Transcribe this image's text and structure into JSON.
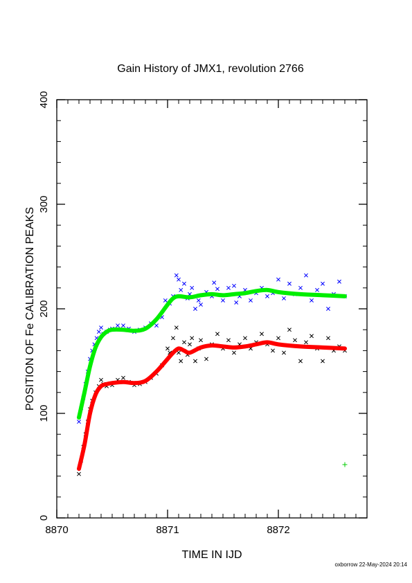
{
  "chart_data": {
    "type": "scatter",
    "title": "Gain History of JMX1, revolution 2766",
    "xlabel": "TIME IN IJD",
    "ylabel": "POSITION OF Fe CALIBRATION PEAKS",
    "xlim": [
      8870,
      8872.8
    ],
    "ylim": [
      0,
      400
    ],
    "x_ticks": [
      8870,
      8871,
      8872
    ],
    "x_tick_labels": [
      "8870",
      "8871",
      "8872"
    ],
    "y_ticks": [
      0,
      100,
      200,
      300,
      400
    ],
    "y_tick_labels": [
      "0",
      "100",
      "200",
      "300",
      "400"
    ],
    "grid": false,
    "legend": "none",
    "colors": {
      "upper_points": "#0000ff",
      "upper_fit": "#00ee00",
      "lower_points": "#000000",
      "lower_fit": "#ff0000",
      "outlier": "#00cc00"
    },
    "series": [
      {
        "role": "upper-fit",
        "x": [
          8870.2,
          8870.25,
          8870.3,
          8870.35,
          8870.4,
          8870.45,
          8870.5,
          8870.6,
          8870.7,
          8870.8,
          8870.9,
          8871.0,
          8871.05,
          8871.1,
          8871.2,
          8871.3,
          8871.4,
          8871.5,
          8871.6,
          8871.7,
          8871.8,
          8871.9,
          8872.0,
          8872.2,
          8872.4,
          8872.6
        ],
        "y": [
          96,
          120,
          145,
          163,
          173,
          178,
          180,
          180,
          179,
          181,
          190,
          204,
          210,
          212,
          211,
          213,
          214,
          213,
          214,
          215,
          217,
          218,
          216,
          214,
          213,
          212
        ]
      },
      {
        "role": "lower-fit",
        "x": [
          8870.2,
          8870.25,
          8870.3,
          8870.35,
          8870.4,
          8870.45,
          8870.5,
          8870.6,
          8870.7,
          8870.8,
          8870.9,
          8871.0,
          8871.05,
          8871.1,
          8871.15,
          8871.2,
          8871.3,
          8871.4,
          8871.5,
          8871.6,
          8871.7,
          8871.8,
          8871.9,
          8872.0,
          8872.2,
          8872.4,
          8872.6
        ],
        "y": [
          47,
          70,
          100,
          118,
          126,
          128,
          129,
          130,
          129,
          131,
          140,
          152,
          158,
          162,
          160,
          158,
          163,
          165,
          164,
          163,
          164,
          166,
          168,
          166,
          164,
          163,
          162
        ]
      },
      {
        "role": "upper-points",
        "x": [
          8870.2,
          8870.22,
          8870.24,
          8870.26,
          8870.28,
          8870.3,
          8870.32,
          8870.34,
          8870.36,
          8870.38,
          8870.4,
          8870.42,
          8870.45,
          8870.48,
          8870.5,
          8870.55,
          8870.6,
          8870.65,
          8870.7,
          8870.75,
          8870.8,
          8870.85,
          8870.9,
          8870.95,
          8870.98,
          8871.0,
          8871.02,
          8871.05,
          8871.08,
          8871.1,
          8871.12,
          8871.15,
          8871.18,
          8871.2,
          8871.22,
          8871.25,
          8871.28,
          8871.3,
          8871.35,
          8871.4,
          8871.42,
          8871.45,
          8871.5,
          8871.55,
          8871.6,
          8871.62,
          8871.65,
          8871.7,
          8871.75,
          8871.8,
          8871.85,
          8871.9,
          8871.95,
          8872.0,
          8872.05,
          8872.1,
          8872.15,
          8872.2,
          8872.25,
          8872.3,
          8872.35,
          8872.4,
          8872.45,
          8872.5,
          8872.55,
          8872.6
        ],
        "y": [
          92,
          105,
          115,
          128,
          140,
          152,
          160,
          166,
          172,
          178,
          182,
          176,
          178,
          180,
          181,
          184,
          184,
          181,
          178,
          180,
          182,
          186,
          184,
          192,
          208,
          206,
          205,
          212,
          232,
          228,
          218,
          224,
          210,
          214,
          220,
          200,
          208,
          204,
          216,
          212,
          225,
          219,
          208,
          220,
          222,
          206,
          212,
          218,
          208,
          215,
          220,
          212,
          215,
          228,
          210,
          224,
          214,
          220,
          232,
          208,
          218,
          224,
          200,
          214,
          226,
          212
        ]
      },
      {
        "role": "lower-points",
        "x": [
          8870.2,
          8870.22,
          8870.24,
          8870.26,
          8870.28,
          8870.3,
          8870.32,
          8870.35,
          8870.38,
          8870.4,
          8870.42,
          8870.45,
          8870.5,
          8870.55,
          8870.6,
          8870.65,
          8870.7,
          8870.75,
          8870.8,
          8870.85,
          8870.9,
          8870.95,
          8871.0,
          8871.02,
          8871.05,
          8871.08,
          8871.1,
          8871.12,
          8871.15,
          8871.18,
          8871.2,
          8871.22,
          8871.25,
          8871.28,
          8871.3,
          8871.35,
          8871.4,
          8871.45,
          8871.5,
          8871.55,
          8871.6,
          8871.65,
          8871.7,
          8871.75,
          8871.8,
          8871.85,
          8871.9,
          8871.95,
          8872.0,
          8872.05,
          8872.1,
          8872.15,
          8872.2,
          8872.25,
          8872.3,
          8872.35,
          8872.4,
          8872.45,
          8872.5,
          8872.55,
          8872.6
        ],
        "y": [
          42,
          55,
          68,
          80,
          92,
          104,
          112,
          120,
          126,
          132,
          128,
          126,
          127,
          132,
          134,
          130,
          127,
          128,
          130,
          134,
          138,
          146,
          162,
          158,
          172,
          182,
          158,
          150,
          168,
          156,
          166,
          172,
          150,
          162,
          170,
          152,
          166,
          176,
          162,
          170,
          158,
          166,
          172,
          162,
          168,
          176,
          166,
          160,
          172,
          158,
          180,
          170,
          150,
          168,
          174,
          162,
          150,
          172,
          160,
          164,
          160
        ]
      },
      {
        "role": "outlier",
        "x": [
          8872.6
        ],
        "y": [
          51
        ]
      }
    ]
  },
  "footer": {
    "credit": "oxborrow 22-May-2024 20:14"
  }
}
